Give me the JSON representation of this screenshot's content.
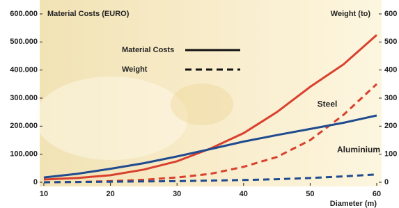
{
  "chart_data": {
    "type": "line",
    "y_title": "Material Costs (EURO)",
    "y2_title": "Weight (to)",
    "x_title": "Diameter (m)",
    "x": [
      10,
      15,
      20,
      25,
      30,
      35,
      40,
      45,
      50,
      55,
      60
    ],
    "xlim": [
      10,
      60
    ],
    "xticks": [
      10,
      20,
      30,
      40,
      50,
      60
    ],
    "ylim": [
      0,
      600000
    ],
    "yticks": [
      0,
      {
        "value": 100000,
        "label": "100.000"
      },
      {
        "value": 200000,
        "label": "200.000"
      },
      {
        "value": 300000,
        "label": "300.000"
      },
      {
        "value": 400000,
        "label": "400.000"
      },
      {
        "value": 500000,
        "label": "500.000"
      },
      {
        "value": 600000,
        "label": "600.000"
      }
    ],
    "y2lim": [
      0,
      600
    ],
    "y2ticks": [
      0,
      100,
      200,
      300,
      400,
      500,
      600
    ],
    "legend": [
      {
        "label": "Material Costs",
        "dash": "solid"
      },
      {
        "label": "Weight",
        "dash": "dashed"
      }
    ],
    "series": [
      {
        "name": "Steel",
        "color": "#d9402e",
        "values": [
          10000,
          15000,
          25000,
          45000,
          75000,
          120000,
          175000,
          250000,
          340000,
          420000,
          525000
        ],
        "weight": [
          0,
          1,
          4,
          9,
          17,
          30,
          55,
          90,
          150,
          240,
          350
        ]
      },
      {
        "name": "Aluminium",
        "color": "#1f4b8f",
        "values": [
          17000,
          30000,
          48000,
          68000,
          92000,
          118000,
          145000,
          168000,
          190000,
          212000,
          238000
        ],
        "weight": [
          0,
          1,
          2,
          3,
          4,
          6,
          8,
          11,
          15,
          21,
          28
        ]
      }
    ]
  }
}
